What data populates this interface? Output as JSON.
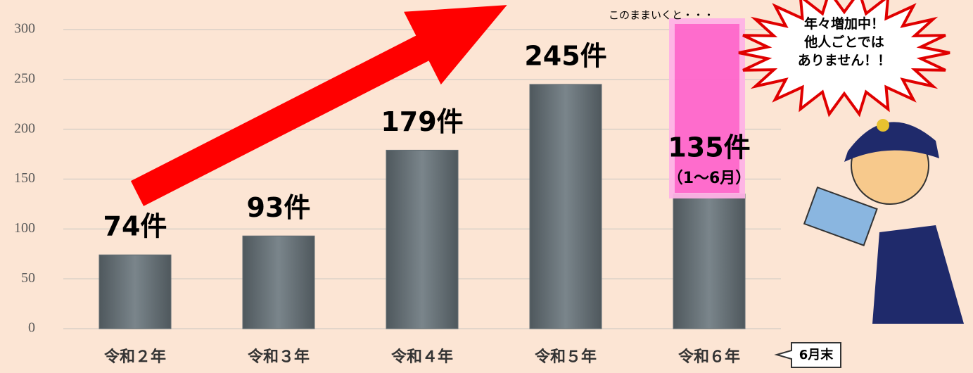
{
  "chart_data": {
    "type": "bar",
    "categories": [
      "令和２年",
      "令和３年",
      "令和４年",
      "令和５年",
      "令和６年"
    ],
    "values": [
      74,
      93,
      179,
      245,
      135
    ],
    "value_labels": [
      "74件",
      "93件",
      "179件",
      "245件",
      "135件"
    ],
    "annotation": "（1〜6月）",
    "note": "このままいくと・・・",
    "callout": [
      "年々増加中！",
      "他人ごとでは",
      "ありません！！"
    ],
    "period_label": "6月末",
    "color": "#626d73",
    "ylim": [
      0,
      300
    ],
    "yticks": [
      0,
      50,
      100,
      150,
      200,
      250,
      300
    ],
    "grid": true
  }
}
